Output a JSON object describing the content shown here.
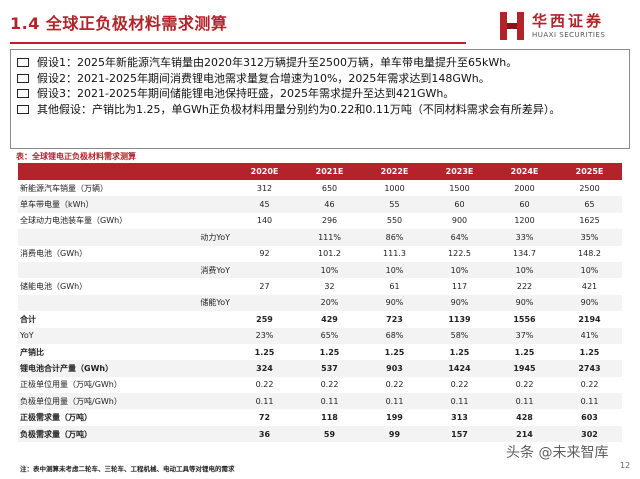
{
  "header": {
    "title": "1.4 全球正负极材料需求测算",
    "logo_cn": "华西证券",
    "logo_en": "HUAXI SECURITIES"
  },
  "assumptions": [
    "假设1：2025年新能源汽车销量由2020年312万辆提升至2500万辆，单车带电量提升至65kWh。",
    "假设2：2021-2025年期间消费锂电池需求量复合增速为10%，2025年需求达到148GWh。",
    "假设3：2021-2025年期间储能锂电池保持旺盛，2025年需求提升至达到421GWh。",
    "其他假设：产销比为1.25，单GWh正负极材料用量分别约为0.22和0.11万吨（不同材料需求会有所差异）。"
  ],
  "table": {
    "caption": "表：全球锂电正负极材料需求测算",
    "columns": [
      "",
      "2020E",
      "2021E",
      "2022E",
      "2023E",
      "2024E",
      "2025E"
    ],
    "rows": [
      {
        "label": "新能源汽车销量（万辆）",
        "sub": false,
        "bold": false,
        "values": [
          "312",
          "650",
          "1000",
          "1500",
          "2000",
          "2500"
        ]
      },
      {
        "label": "单车带电量（kWh）",
        "sub": false,
        "bold": false,
        "values": [
          "45",
          "46",
          "55",
          "60",
          "60",
          "65"
        ]
      },
      {
        "label": "全球动力电池装车量（GWh）",
        "sub": false,
        "bold": false,
        "values": [
          "140",
          "296",
          "550",
          "900",
          "1200",
          "1625"
        ]
      },
      {
        "label": "动力YoY",
        "sub": true,
        "bold": false,
        "values": [
          "",
          "111%",
          "86%",
          "64%",
          "33%",
          "35%"
        ]
      },
      {
        "label": "消费电池（GWh）",
        "sub": false,
        "bold": false,
        "values": [
          "92",
          "101.2",
          "111.3",
          "122.5",
          "134.7",
          "148.2"
        ]
      },
      {
        "label": "消费YoY",
        "sub": true,
        "bold": false,
        "values": [
          "",
          "10%",
          "10%",
          "10%",
          "10%",
          "10%"
        ]
      },
      {
        "label": "储能电池（GWh）",
        "sub": false,
        "bold": false,
        "values": [
          "27",
          "32",
          "61",
          "117",
          "222",
          "421"
        ]
      },
      {
        "label": "储能YoY",
        "sub": true,
        "bold": false,
        "values": [
          "",
          "20%",
          "90%",
          "90%",
          "90%",
          "90%"
        ]
      },
      {
        "label": "合计",
        "sub": false,
        "bold": true,
        "values": [
          "259",
          "429",
          "723",
          "1139",
          "1556",
          "2194"
        ]
      },
      {
        "label": "YoY",
        "sub": false,
        "bold": false,
        "values": [
          "23%",
          "65%",
          "68%",
          "58%",
          "37%",
          "41%"
        ]
      },
      {
        "label": "产销比",
        "sub": false,
        "bold": true,
        "values": [
          "1.25",
          "1.25",
          "1.25",
          "1.25",
          "1.25",
          "1.25"
        ]
      },
      {
        "label": "锂电池合计产量（GWh）",
        "sub": false,
        "bold": true,
        "values": [
          "324",
          "537",
          "903",
          "1424",
          "1945",
          "2743"
        ]
      },
      {
        "label": "正极单位用量（万吨/GWh）",
        "sub": false,
        "bold": false,
        "values": [
          "0.22",
          "0.22",
          "0.22",
          "0.22",
          "0.22",
          "0.22"
        ]
      },
      {
        "label": "负极单位用量（万吨/GWh）",
        "sub": false,
        "bold": false,
        "values": [
          "0.11",
          "0.11",
          "0.11",
          "0.11",
          "0.11",
          "0.11"
        ]
      },
      {
        "label": "正极需求量（万吨）",
        "sub": false,
        "bold": true,
        "values": [
          "72",
          "118",
          "199",
          "313",
          "428",
          "603"
        ]
      },
      {
        "label": "负极需求量（万吨）",
        "sub": false,
        "bold": true,
        "values": [
          "36",
          "59",
          "99",
          "157",
          "214",
          "302"
        ]
      }
    ]
  },
  "footer": {
    "note": "注：表中测算未考虑二轮车、三轮车、工程机械、电动工具等对锂电的需求",
    "watermark": "头条 @未来智库",
    "page": "12"
  },
  "colors": {
    "accent": "#b3232a"
  }
}
